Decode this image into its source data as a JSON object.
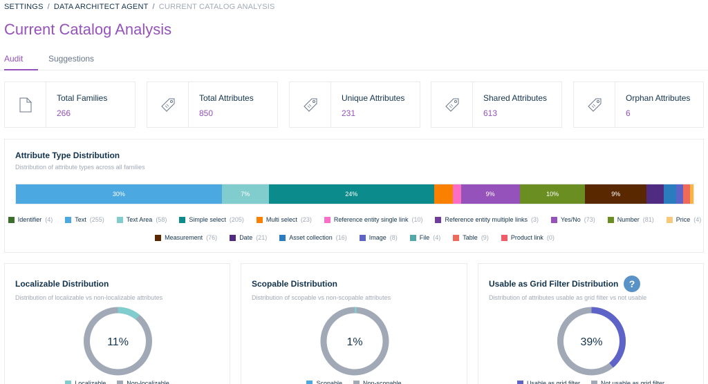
{
  "breadcrumb": {
    "items": [
      "Settings",
      "Data Architect Agent"
    ],
    "current": "Current Catalog Analysis",
    "separator": "/"
  },
  "page": {
    "title": "Current Catalog Analysis"
  },
  "tabs": [
    {
      "label": "Audit",
      "active": true
    },
    {
      "label": "Suggestions",
      "active": false
    }
  ],
  "stats": [
    {
      "label": "Total Families",
      "value": "266",
      "icon": "document-icon"
    },
    {
      "label": "Total Attributes",
      "value": "850",
      "icon": "tag-icon"
    },
    {
      "label": "Unique Attributes",
      "value": "231",
      "icon": "tag-icon"
    },
    {
      "label": "Shared Attributes",
      "value": "613",
      "icon": "tag-icon"
    },
    {
      "label": "Orphan Attributes",
      "value": "6",
      "icon": "tag-icon"
    }
  ],
  "distribution": {
    "title": "Attribute Type Distribution",
    "subtitle": "Distribution of attribute types across all families",
    "segments": [
      {
        "label": "30%",
        "value": 255,
        "color": "#4ca8e0"
      },
      {
        "label": "7%",
        "value": 58,
        "color": "#81cccc"
      },
      {
        "label": "24%",
        "value": 205,
        "color": "#0b8b8b"
      },
      {
        "label": "",
        "value": 23,
        "color": "#fa8000"
      },
      {
        "label": "",
        "value": 10,
        "color": "#fa6ec8"
      },
      {
        "label": "9%",
        "value": 73,
        "color": "#9452ba"
      },
      {
        "label": "10%",
        "value": 81,
        "color": "#6b8e23"
      },
      {
        "label": "9%",
        "value": 76,
        "color": "#5a2800"
      },
      {
        "label": "",
        "value": 21,
        "color": "#4f2c82"
      },
      {
        "label": "",
        "value": 16,
        "color": "#2b7bbf"
      },
      {
        "label": "",
        "value": 8,
        "color": "#5e63c8"
      },
      {
        "label": "",
        "value": 9,
        "color": "#ef6a5a"
      },
      {
        "label": "",
        "value": 4,
        "color": "#f9b53f"
      }
    ],
    "legend_row1": [
      {
        "name": "Identifier",
        "count": "(4)",
        "color": "#3c6e2c"
      },
      {
        "name": "Text",
        "count": "(255)",
        "color": "#4ca8e0"
      },
      {
        "name": "Text Area",
        "count": "(58)",
        "color": "#81cccc"
      },
      {
        "name": "Simple select",
        "count": "(205)",
        "color": "#0b8b8b"
      },
      {
        "name": "Multi select",
        "count": "(23)",
        "color": "#fa8000"
      },
      {
        "name": "Reference entity single link",
        "count": "(10)",
        "color": "#fa6ec8"
      },
      {
        "name": "Reference entity multiple links",
        "count": "(3)",
        "color": "#6f3c9b"
      },
      {
        "name": "Yes/No",
        "count": "(73)",
        "color": "#9452ba"
      },
      {
        "name": "Number",
        "count": "(81)",
        "color": "#6b8e23"
      },
      {
        "name": "Price",
        "count": "(4)",
        "color": "#f9c97b"
      }
    ],
    "legend_row2": [
      {
        "name": "Measurement",
        "count": "(76)",
        "color": "#5a2800"
      },
      {
        "name": "Date",
        "count": "(21)",
        "color": "#4f2c82"
      },
      {
        "name": "Asset collection",
        "count": "(16)",
        "color": "#2b7bbf"
      },
      {
        "name": "Image",
        "count": "(8)",
        "color": "#5e63c8"
      },
      {
        "name": "File",
        "count": "(4)",
        "color": "#54a8a8"
      },
      {
        "name": "Table",
        "count": "(9)",
        "color": "#ef6a5a"
      },
      {
        "name": "Product link",
        "count": "(0)",
        "color": "#f25c68"
      }
    ]
  },
  "pies": [
    {
      "title": "Localizable Distribution",
      "subtitle": "Distribution of localizable vs non-localizable attributes",
      "percent_label": "11%",
      "fraction": 0.11,
      "color": "#81cccc",
      "rest_color": "#a1a9b7",
      "legend": [
        {
          "name": "Localizable",
          "color": "#81cccc"
        },
        {
          "name": "Non-localizable",
          "color": "#a1a9b7"
        }
      ]
    },
    {
      "title": "Scopable Distribution",
      "subtitle": "Distribution of scopable vs non-scopable attributes",
      "percent_label": "1%",
      "fraction": 0.01,
      "color": "#81cccc",
      "rest_color": "#a1a9b7",
      "legend": [
        {
          "name": "Scopable",
          "color": "#4ca8e0"
        },
        {
          "name": "Non-scopable",
          "color": "#a1a9b7"
        }
      ]
    },
    {
      "title": "Usable as Grid Filter Distribution",
      "subtitle": "Distribution of attributes usable as grid filter vs not usable",
      "percent_label": "39%",
      "fraction": 0.39,
      "color": "#5e63c8",
      "rest_color": "#a1a9b7",
      "help_icon": "?",
      "legend": [
        {
          "name": "Usable as grid filter",
          "color": "#5e63c8"
        },
        {
          "name": "Not usable as grid filter",
          "color": "#a1a9b7"
        }
      ]
    }
  ]
}
